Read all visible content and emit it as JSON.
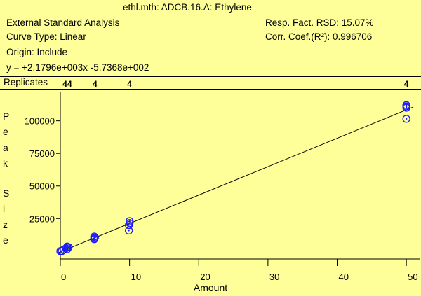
{
  "header": {
    "title": "ethl.mth:  ADCB.16.A:  Ethylene",
    "analysis": "External Standard Analysis",
    "curve_type": "Curve Type:  Linear",
    "origin": "Origin:  Include",
    "equation": "y =  +2.1796e+003x -5.7368e+002",
    "rsd": "Resp. Fact. RSD:  15.07%",
    "corr": "Corr. Coef.(R²):  0.996706"
  },
  "replicates": {
    "label": "Replicates",
    "items": [
      {
        "x": 1,
        "text": "44"
      },
      {
        "x": 5,
        "text": "4"
      },
      {
        "x": 10,
        "text": "4"
      },
      {
        "x": 50,
        "text": "4"
      }
    ]
  },
  "chart_data": {
    "type": "scatter",
    "xlabel": "Amount",
    "ylabel": "Peak Size",
    "xlim": [
      0,
      51
    ],
    "ylim": [
      -6000,
      117000
    ],
    "x_ticks": [
      0,
      10,
      20,
      30,
      40,
      50
    ],
    "y_ticks": [
      25000,
      50000,
      75000,
      100000
    ],
    "y_tick_labels": [
      "25000",
      "50000",
      "75000",
      "100000"
    ],
    "fit": {
      "slope": 2179.6,
      "intercept": -573.68
    },
    "series": [
      {
        "x": [
          0,
          0.2,
          0.5,
          0.8,
          1.0,
          1.0,
          1.0,
          1.2,
          4.9,
          4.9,
          4.9,
          5.0,
          9.9,
          9.9,
          10.0,
          10.0,
          50.0,
          50.0,
          50.0,
          50.0
        ],
        "y": [
          0,
          0,
          1200,
          2200,
          1500,
          2800,
          3500,
          3000,
          9200,
          10000,
          11200,
          10500,
          15800,
          20000,
          21500,
          23000,
          101500,
          110000,
          111000,
          112000
        ]
      }
    ],
    "grid": false
  },
  "colors": {
    "background": "#ffff99",
    "marker": "#1a1aff",
    "line": "#000000"
  }
}
